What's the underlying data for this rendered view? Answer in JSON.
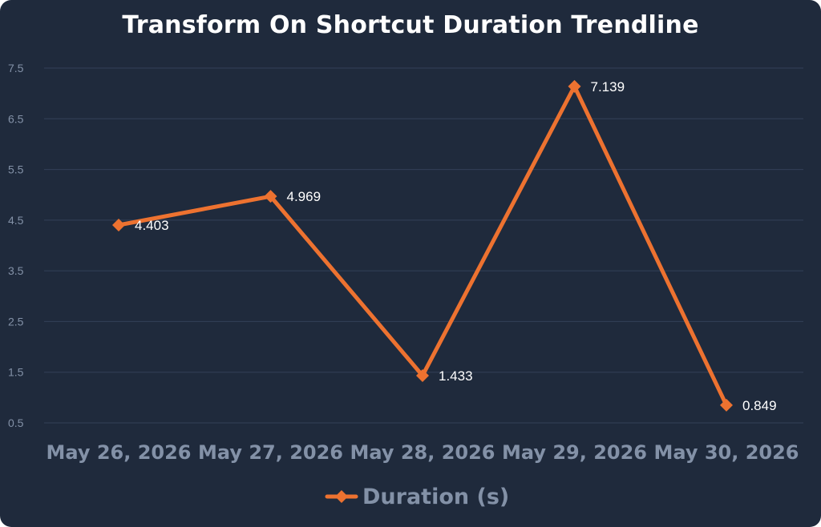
{
  "chart_data": {
    "type": "line",
    "title": "Transform On Shortcut Duration Trendline",
    "xlabel": "",
    "ylabel": "",
    "categories": [
      "May 26, 2026",
      "May 27, 2026",
      "May 28, 2026",
      "May 29, 2026",
      "May 30, 2026"
    ],
    "series": [
      {
        "name": "Duration (s)",
        "values": [
          4.403,
          4.969,
          1.433,
          7.139,
          0.849
        ],
        "color": "#ed7230",
        "marker": "diamond"
      }
    ],
    "yticks": [
      "0.5",
      "1.5",
      "2.5",
      "3.5",
      "4.5",
      "5.5",
      "6.5",
      "7.5"
    ],
    "ylim": [
      0.5,
      7.5
    ],
    "grid": true,
    "legend_position": "bottom",
    "data_labels": [
      "4.403",
      "4.969",
      "1.433",
      "7.139",
      "0.849"
    ]
  },
  "colors": {
    "background": "#1f2a3c",
    "gridline": "#334058",
    "axis_text": "#8391a7",
    "title": "#ffffff",
    "series": "#ed7230"
  }
}
